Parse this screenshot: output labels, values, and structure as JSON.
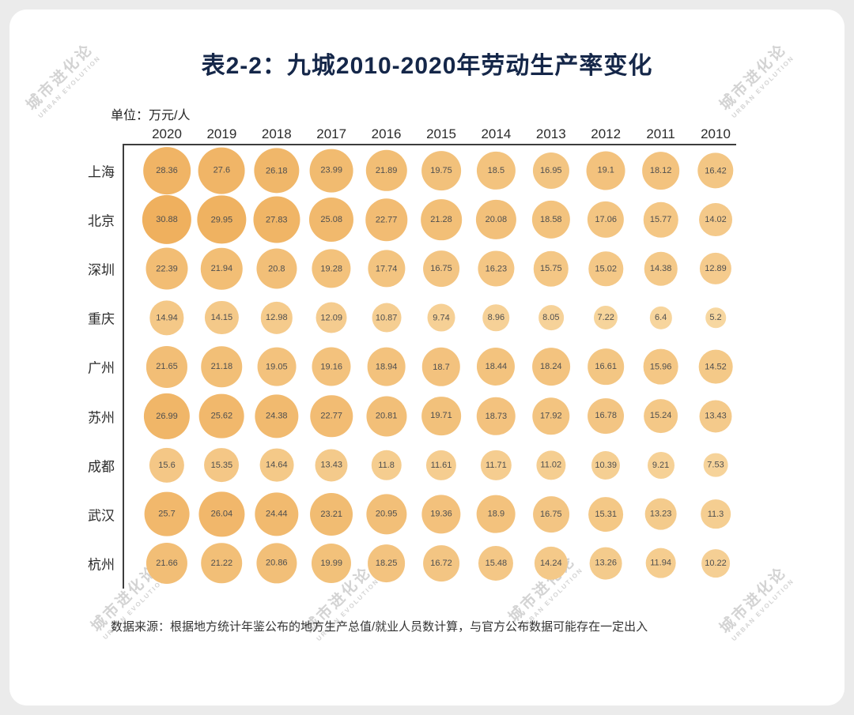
{
  "page": {
    "title": "表2-2：九城2010-2020年劳动生产率变化",
    "unit_label": "单位：万元/人",
    "source_note": "数据来源：根据地方统计年鉴公布的地方生产总值/就业人员数计算，与官方公布数据可能存在一定出入"
  },
  "watermark": {
    "cn": "城市进化论",
    "en": "URBAN EVOLUTION"
  },
  "style": {
    "title_color": "#152749",
    "bubble_color_small": "#F7D7A1",
    "bubble_color_large": "#EFB05E",
    "axis_color": "#3d3d3d"
  },
  "chart_data": {
    "type": "bubble-table",
    "title": "表2-2：九城2010-2020年劳动生产率变化",
    "unit": "万元/人",
    "legend_position": "none",
    "grid": false,
    "columns": [
      "2020",
      "2019",
      "2018",
      "2017",
      "2016",
      "2015",
      "2014",
      "2013",
      "2012",
      "2011",
      "2010"
    ],
    "rows": [
      {
        "city": "上海",
        "values": [
          28.36,
          27.6,
          26.18,
          23.99,
          21.89,
          19.75,
          18.5,
          16.95,
          19.1,
          18.12,
          16.42
        ]
      },
      {
        "city": "北京",
        "values": [
          30.88,
          29.95,
          27.83,
          25.08,
          22.77,
          21.28,
          20.08,
          18.58,
          17.06,
          15.77,
          14.02
        ]
      },
      {
        "city": "深圳",
        "values": [
          22.39,
          21.94,
          20.8,
          19.28,
          17.74,
          16.75,
          16.23,
          15.75,
          15.02,
          14.38,
          12.89
        ]
      },
      {
        "city": "重庆",
        "values": [
          14.94,
          14.15,
          12.98,
          12.09,
          10.87,
          9.74,
          8.96,
          8.05,
          7.22,
          6.4,
          5.2
        ]
      },
      {
        "city": "广州",
        "values": [
          21.65,
          21.18,
          19.05,
          19.16,
          18.94,
          18.7,
          18.44,
          18.24,
          16.61,
          15.96,
          14.52
        ]
      },
      {
        "city": "苏州",
        "values": [
          26.99,
          25.62,
          24.38,
          22.77,
          20.81,
          19.71,
          18.73,
          17.92,
          16.78,
          15.24,
          13.43
        ]
      },
      {
        "city": "成都",
        "values": [
          15.6,
          15.35,
          14.64,
          13.43,
          11.8,
          11.61,
          11.71,
          11.02,
          10.39,
          9.21,
          7.53
        ]
      },
      {
        "city": "武汉",
        "values": [
          25.7,
          26.04,
          24.44,
          23.21,
          20.95,
          19.36,
          18.9,
          16.75,
          15.31,
          13.23,
          11.3
        ]
      },
      {
        "city": "杭州",
        "values": [
          21.66,
          21.22,
          20.86,
          19.99,
          18.25,
          16.72,
          15.48,
          14.24,
          13.26,
          11.94,
          10.22
        ]
      }
    ],
    "value_min_shown": 5.2,
    "value_max_shown": 30.88
  }
}
